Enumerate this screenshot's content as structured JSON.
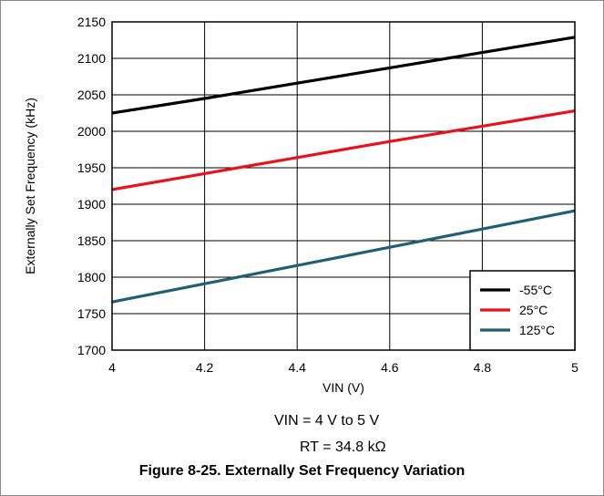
{
  "chart_data": {
    "type": "line",
    "title": "",
    "xlabel": "VIN (V)",
    "ylabel": "Externally Set Frequency (kHz)",
    "xlim": [
      4,
      5
    ],
    "ylim": [
      1700,
      2150
    ],
    "xticks": [
      4,
      4.2,
      4.4,
      4.6,
      4.8,
      5
    ],
    "xtick_labels": [
      "4",
      "4.2",
      "4.4",
      "4.6",
      "4.8",
      "5"
    ],
    "yticks": [
      1700,
      1750,
      1800,
      1850,
      1900,
      1950,
      2000,
      2050,
      2100,
      2150
    ],
    "ytick_labels": [
      "1700",
      "1750",
      "1800",
      "1850",
      "1900",
      "1950",
      "2000",
      "2050",
      "2100",
      "2150"
    ],
    "grid": true,
    "legend_position": "bottom-right",
    "series": [
      {
        "name": "-55°C",
        "color": "#000000",
        "x": [
          4,
          4.2,
          4.4,
          4.6,
          4.8,
          5
        ],
        "y": [
          2025,
          2045,
          2066,
          2087,
          2108,
          2129
        ]
      },
      {
        "name": "25°C",
        "color": "#e8121b",
        "x": [
          4,
          4.2,
          4.4,
          4.6,
          4.8,
          5
        ],
        "y": [
          1920,
          1942,
          1964,
          1986,
          2007,
          2028
        ]
      },
      {
        "name": "125°C",
        "color": "#1f6077",
        "x": [
          4,
          4.2,
          4.4,
          4.6,
          4.8,
          5
        ],
        "y": [
          1766,
          1791,
          1816,
          1841,
          1866,
          1891
        ]
      }
    ]
  },
  "conditions": {
    "line1": "VIN = 4 V to 5 V",
    "line2": "RT = 34.8 kΩ"
  },
  "caption": "Figure 8-25. Externally Set Frequency Variation"
}
